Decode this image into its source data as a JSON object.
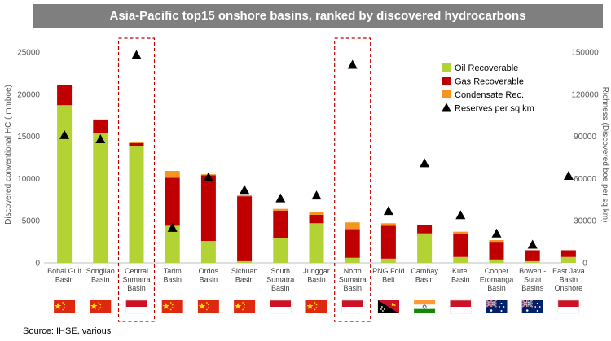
{
  "title": "Asia-Pacific top15 onshore basins, ranked by discovered hydrocarbons",
  "source": "Source: IHSE, various",
  "chart_data": {
    "type": "bar",
    "stacked": true,
    "title": "Asia-Pacific top15 onshore basins, ranked by discovered hydrocarbons",
    "ylabel": "Discovered conventional HC ( mmboe)",
    "y2label": "Richness (Discovered boe per sq km)",
    "ylim": [
      0,
      25000
    ],
    "y2lim": [
      0,
      150000
    ],
    "yticks": [
      "0",
      "5000",
      "10000",
      "15000",
      "20000",
      "25000"
    ],
    "y2ticks": [
      "0",
      "30000",
      "60000",
      "90000",
      "120000",
      "150000"
    ],
    "grid": false,
    "legend_position": "top-right",
    "categories": [
      [
        "Bohai Gulf",
        "Basin"
      ],
      [
        "Songliao",
        "Basin"
      ],
      [
        "Central",
        "Sumatra",
        "Basin"
      ],
      [
        "Tarim",
        "Basin"
      ],
      [
        "Ordos",
        "Basin"
      ],
      [
        "Sichuan",
        "Basin"
      ],
      [
        "South",
        "Sumatra",
        "Basin"
      ],
      [
        "Junggar",
        "Basin"
      ],
      [
        "North",
        "Sumatra",
        "Basin"
      ],
      [
        "PNG Fold",
        "Belt"
      ],
      [
        "Cambay",
        "Basin"
      ],
      [
        "Kutei",
        "Basin"
      ],
      [
        "Cooper",
        "Eromanga",
        "Basin"
      ],
      [
        "Bowen -",
        "Surat",
        "Basins"
      ],
      [
        "East Java",
        "Basin",
        "Onshore"
      ]
    ],
    "series": [
      {
        "name": "Oil Recoverable",
        "color": "#b3d334",
        "values": [
          18700,
          15400,
          13800,
          4400,
          2600,
          200,
          2900,
          4700,
          600,
          500,
          3500,
          700,
          400,
          200,
          700
        ]
      },
      {
        "name": "Gas Recoverable",
        "color": "#c00000",
        "values": [
          2400,
          1600,
          400,
          5700,
          7800,
          7700,
          3300,
          1000,
          3400,
          3900,
          1000,
          2800,
          2100,
          1300,
          800
        ]
      },
      {
        "name": "Condensate Rec.",
        "color": "#f7941d",
        "values": [
          0,
          0,
          100,
          800,
          100,
          100,
          200,
          300,
          800,
          300,
          0,
          200,
          200,
          0,
          0
        ]
      }
    ],
    "markers": {
      "name": "Reserves per sq km",
      "color": "#000000",
      "axis": "right",
      "values": [
        91000,
        88000,
        148000,
        25000,
        61000,
        52000,
        46000,
        48000,
        141000,
        37000,
        71000,
        34000,
        21000,
        13000,
        62000
      ]
    },
    "highlighted_categories": [
      "Central Sumatra Basin",
      "North Sumatra Basin"
    ],
    "flags": [
      "china",
      "china",
      "indonesia",
      "china",
      "china",
      "china",
      "indonesia",
      "china",
      "indonesia",
      "png",
      "india",
      "indonesia",
      "australia",
      "australia",
      "indonesia"
    ]
  }
}
